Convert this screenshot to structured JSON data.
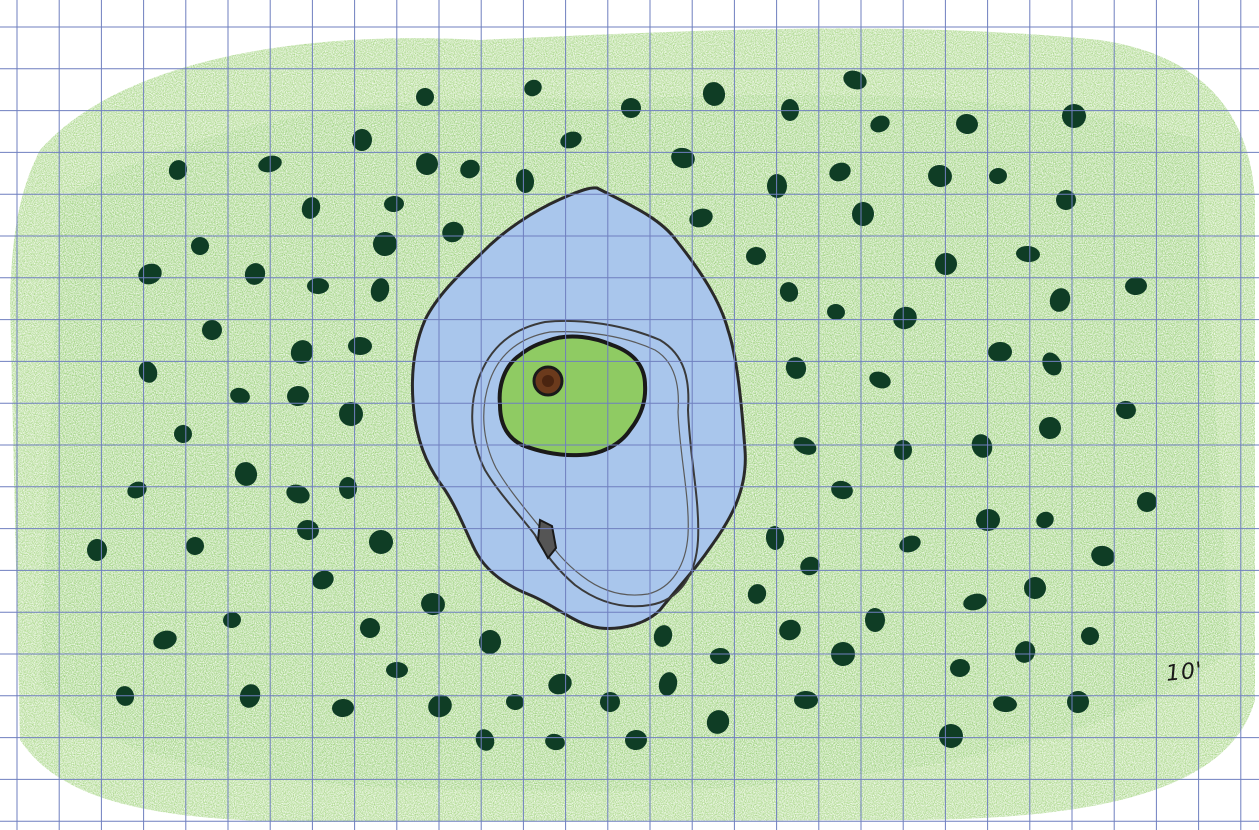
{
  "map": {
    "scale_label": "10'",
    "colors": {
      "paper": "#ffffff",
      "grid": "#6f7fbf",
      "grass": "#9fd27a",
      "grass_dark": "#7fc35a",
      "tree": "#0f3d25",
      "water": "#a9c6ec",
      "water_edge": "#2a2a2a",
      "island": "#8fcb63",
      "island_feature": "#6b3a1c",
      "ink": "#1a1a1a"
    },
    "features": [
      {
        "name": "tree-field",
        "icon": "tree-icon"
      },
      {
        "name": "pond",
        "icon": "water-icon"
      },
      {
        "name": "island",
        "icon": "island-icon"
      },
      {
        "name": "island-well",
        "icon": "well-icon"
      },
      {
        "name": "boat",
        "icon": "boat-icon"
      }
    ]
  }
}
